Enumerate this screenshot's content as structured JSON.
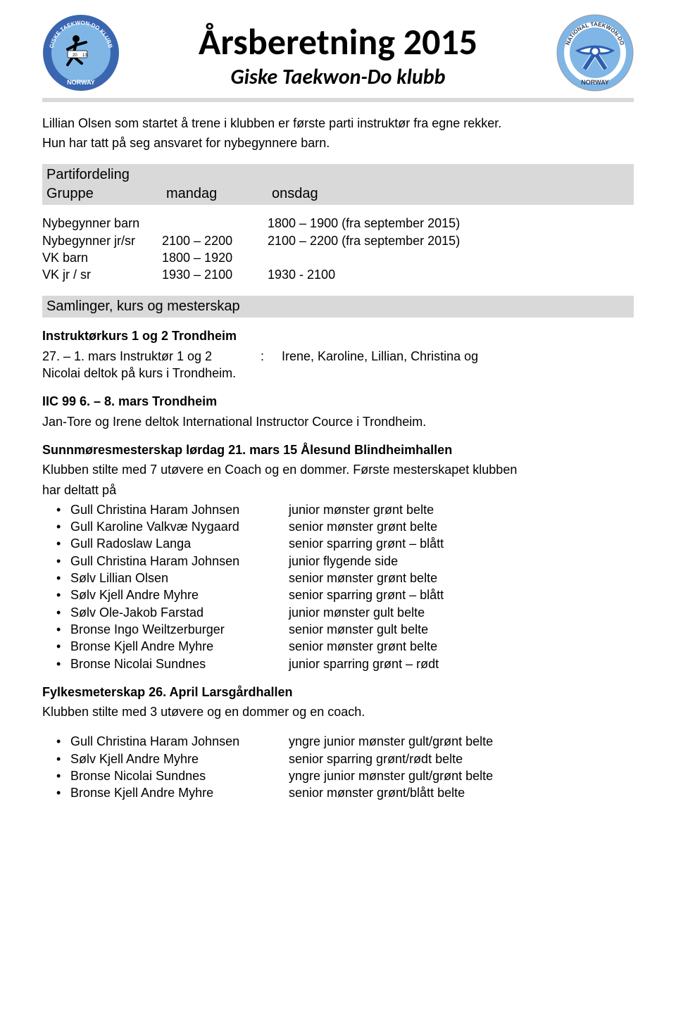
{
  "header": {
    "main_title": "Årsberetning 2015",
    "subtitle": "Giske Taekwon-Do klubb"
  },
  "intro": {
    "line1": "Lillian Olsen som startet å trene i klubben er første parti instruktør fra egne rekker.",
    "line2": "Hun har tatt på seg ansvaret for nybegynnere barn."
  },
  "partifordeling": {
    "title": "Partifordeling",
    "cols": [
      "Gruppe",
      "mandag",
      "onsdag"
    ],
    "rows": [
      {
        "c0": "Nybegynner barn",
        "c1": "",
        "c2": "1800 – 1900 (fra september 2015)"
      },
      {
        "c0": "Nybegynner jr/sr",
        "c1": "2100 – 2200",
        "c2": "2100 – 2200 (fra september 2015)"
      },
      {
        "c0": "VK barn",
        "c1": "1800 – 1920",
        "c2": ""
      },
      {
        "c0": "VK jr / sr",
        "c1": "1930 – 2100",
        "c2": "1930 - 2100"
      }
    ]
  },
  "samlinger_title": "Samlinger, kurs og mesterskap",
  "instruktorkurs": {
    "heading": "Instruktørkurs 1 og 2 Trondheim",
    "date": "27. – 1. mars",
    "role": "Instruktør 1 og 2",
    "sep": ":",
    "names": "Irene, Karoline, Lillian, Christina og",
    "line2": "Nicolai deltok på kurs i Trondheim."
  },
  "iic": {
    "heading": "IIC 99 6. – 8. mars Trondheim",
    "text": "Jan-Tore og Irene deltok International Instructor Cource i Trondheim."
  },
  "sunnmore": {
    "heading": "Sunnmøresmesterskap lørdag 21. mars 15 Ålesund Blindheimhallen",
    "intro1": "Klubben stilte med 7 utøvere en Coach og en dommer. Første mesterskapet klubben",
    "intro2": "har deltatt på",
    "results": [
      {
        "name": "Gull Christina Haram Johnsen",
        "desc": "junior mønster grønt belte"
      },
      {
        "name": "Gull Karoline Valkvæ Nygaard",
        "desc": "senior mønster grønt belte"
      },
      {
        "name": "Gull Radoslaw Langa",
        "desc": "senior sparring grønt – blått"
      },
      {
        "name": "Gull Christina Haram Johnsen",
        "desc": "junior flygende side"
      },
      {
        "name": "Sølv Lillian Olsen",
        "desc": "senior mønster grønt belte"
      },
      {
        "name": "Sølv Kjell Andre Myhre",
        "desc": "senior sparring grønt – blått"
      },
      {
        "name": "Sølv Ole-Jakob Farstad",
        "desc": "junior mønster gult belte"
      },
      {
        "name": "Bronse Ingo Weiltzerburger",
        "desc": "senior mønster gult belte"
      },
      {
        "name": "Bronse Kjell Andre Myhre",
        "desc": "senior mønster grønt belte"
      },
      {
        "name": "Bronse Nicolai Sundnes",
        "desc": "junior sparring grønt – rødt"
      }
    ]
  },
  "fylkes": {
    "heading": "Fylkesmeterskap 26. April Larsgårdhallen",
    "intro": "Klubben stilte med 3 utøvere og en dommer og en coach.",
    "results": [
      {
        "name": "Gull Christina Haram Johnsen",
        "desc": "yngre junior mønster gult/grønt belte"
      },
      {
        "name": "Sølv Kjell Andre Myhre",
        "desc": "senior sparring grønt/rødt belte"
      },
      {
        "name": "Bronse Nicolai Sundnes",
        "desc": "yngre junior mønster gult/grønt belte"
      },
      {
        "name": "Bronse Kjell Andre Myhre",
        "desc": "senior mønster grønt/blått belte"
      }
    ]
  },
  "logos": {
    "left": {
      "top_text": "GISKE TAEKWON-DO KLUBB",
      "year": "2013",
      "bottom": "NORWAY",
      "ring": "#3a66b0",
      "bg": "#7fb6e6"
    },
    "right": {
      "top_text": "NATIONAL TAEKWON-DO",
      "bottom": "NORWAY",
      "ring": "#ffffff",
      "bg": "#7fb6e6",
      "belt": "#2a5fb0"
    }
  }
}
